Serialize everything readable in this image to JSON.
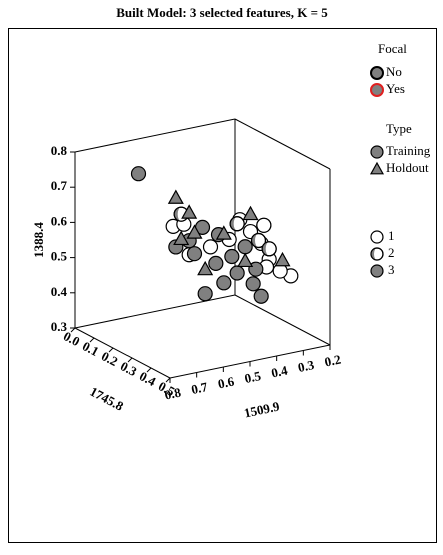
{
  "chart_data": {
    "type": "scatter3d",
    "title": "Built Model: 3 selected features, K = 5",
    "xlabel": "1745.8",
    "ylabel": "1509.9",
    "zlabel": "1388.4",
    "xlim": [
      0,
      0.5
    ],
    "xticks": [
      {
        "value": 0,
        "label": "0.0"
      },
      0.1,
      0.2,
      0.3,
      0.4,
      0.5
    ],
    "ylim": [
      0.8,
      0.2
    ],
    "yticks": [
      0.8,
      0.7,
      0.6,
      0.5,
      0.4,
      0.3,
      0.2
    ],
    "zlim": [
      0.3,
      0.8
    ],
    "zticks": [
      0.3,
      0.4,
      0.5,
      0.6,
      0.7,
      0.8
    ],
    "legends": {
      "focal": {
        "title": "Focal",
        "items": [
          {
            "name": "No",
            "color": "#808080",
            "edge": "#000000"
          },
          {
            "name": "Yes",
            "color": "#808080",
            "edge": "#e02020"
          }
        ]
      },
      "type": {
        "title": "Type",
        "items": [
          {
            "name": "Training",
            "marker": "circle",
            "color": "#808080"
          },
          {
            "name": "Holdout",
            "marker": "triangle",
            "color": "#808080"
          }
        ]
      }
    },
    "series": [
      {
        "name": "1",
        "marker": "circle",
        "color": "#ffffff",
        "x": [
          0.25,
          0.25,
          0.25,
          0.25,
          0.25,
          0.25,
          0.25,
          0.35,
          0.35,
          0.25,
          0.25,
          0.25,
          0.25,
          0.25
        ],
        "y": [
          0.61,
          0.57,
          0.36,
          0.32,
          0.28,
          0.25,
          0.26,
          0.24,
          0.28,
          0.55,
          0.47,
          0.4,
          0.27,
          0.27
        ],
        "z": [
          0.63,
          0.63,
          0.61,
          0.57,
          0.53,
          0.48,
          0.46,
          0.46,
          0.48,
          0.54,
          0.55,
          0.56,
          0.58,
          0.58
        ]
      },
      {
        "name": "2",
        "marker": "half",
        "color": "#808080",
        "x": [
          0.25,
          0.25,
          0.25,
          0.25
        ],
        "y": [
          0.58,
          0.37,
          0.29,
          0.25
        ],
        "z": [
          0.66,
          0.6,
          0.54,
          0.51
        ]
      },
      {
        "name": "3",
        "marker": "circle",
        "color": "#808080",
        "x": [
          0.25,
          0.25,
          0.25,
          0.25,
          0.25,
          0.25,
          0.25,
          0.25,
          0.25,
          0.25,
          0.25,
          0.25,
          0.25,
          0.25,
          0.25
        ],
        "y": [
          0.74,
          0.5,
          0.44,
          0.34,
          0.39,
          0.53,
          0.45,
          0.3,
          0.37,
          0.42,
          0.31,
          0.49,
          0.28,
          0.55,
          0.6
        ],
        "z": [
          0.8,
          0.61,
          0.58,
          0.53,
          0.51,
          0.54,
          0.5,
          0.46,
          0.46,
          0.44,
          0.42,
          0.42,
          0.38,
          0.58,
          0.57
        ]
      },
      {
        "marker": "triangle",
        "color": "#808080",
        "x": [
          0.25,
          0.25,
          0.25,
          0.25,
          0.25,
          0.25,
          0.25,
          0.25,
          0.25
        ],
        "y": [
          0.6,
          0.55,
          0.53,
          0.42,
          0.49,
          0.32,
          0.34,
          0.2,
          0.58
        ],
        "z": [
          0.71,
          0.66,
          0.6,
          0.58,
          0.49,
          0.62,
          0.49,
          0.47,
          0.59
        ]
      }
    ]
  }
}
